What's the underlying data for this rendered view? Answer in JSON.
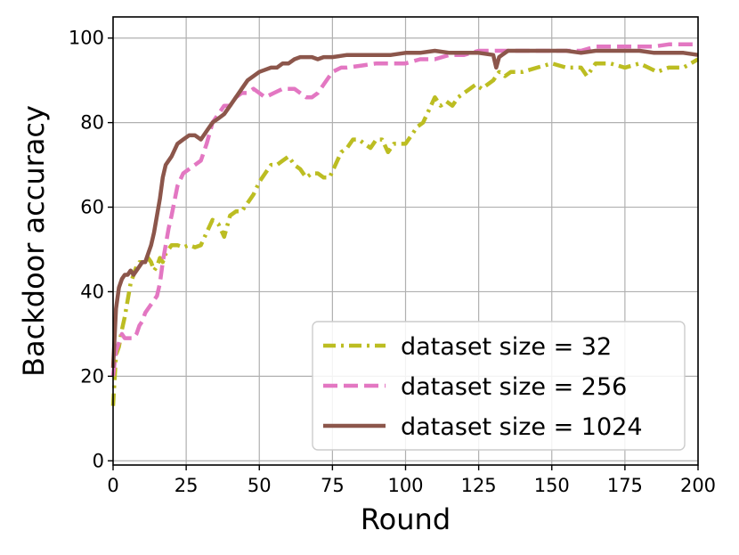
{
  "chart_data": {
    "type": "line",
    "xlabel": "Round",
    "ylabel": "Backdoor accuracy",
    "xlim": [
      0,
      200
    ],
    "ylim": [
      -1,
      105
    ],
    "xticks": [
      "0",
      "25",
      "50",
      "75",
      "100",
      "125",
      "150",
      "175",
      "200"
    ],
    "yticks": [
      "0",
      "20",
      "40",
      "60",
      "80",
      "100"
    ],
    "grid": true,
    "legend_position": "lower-right",
    "series": [
      {
        "name": "dataset size = 32",
        "color": "#bcbd22",
        "dash": "dash-dot",
        "x": [
          0,
          1,
          2,
          3,
          4,
          5,
          6,
          7,
          8,
          9,
          10,
          11,
          12,
          13,
          14,
          15,
          16,
          17,
          18,
          19,
          20,
          22,
          24,
          26,
          28,
          30,
          32,
          34,
          36,
          38,
          40,
          42,
          44,
          46,
          48,
          50,
          52,
          54,
          56,
          58,
          60,
          62,
          64,
          66,
          68,
          70,
          72,
          74,
          76,
          78,
          80,
          82,
          84,
          86,
          88,
          90,
          92,
          94,
          96,
          98,
          100,
          102,
          104,
          106,
          108,
          110,
          112,
          114,
          116,
          118,
          120,
          122,
          124,
          126,
          128,
          130,
          132,
          134,
          136,
          138,
          140,
          145,
          150,
          155,
          160,
          162,
          165,
          170,
          175,
          180,
          183,
          186,
          190,
          195,
          200
        ],
        "y": [
          13,
          25,
          27,
          31,
          34,
          38,
          42,
          44,
          46,
          47,
          47,
          47,
          48,
          47,
          45,
          46,
          48,
          47,
          49,
          50,
          51,
          51,
          50.5,
          51,
          50.5,
          51,
          54,
          57,
          56,
          53,
          58,
          59,
          59,
          61,
          63,
          66,
          68,
          70,
          70,
          71,
          72,
          70,
          69,
          67,
          68,
          68,
          67,
          67,
          70,
          73,
          74,
          76,
          76,
          75,
          74,
          76,
          76,
          73,
          75,
          75,
          75,
          77,
          79,
          80,
          83,
          86,
          84,
          85,
          84,
          86,
          87,
          88,
          89,
          88,
          89,
          90,
          92,
          91,
          92,
          92,
          92,
          93,
          94,
          93,
          93,
          91,
          94,
          94,
          93,
          94,
          93,
          92,
          93,
          93,
          95
        ]
      },
      {
        "name": "dataset size = 256",
        "color": "#e377c2",
        "dash": "dashed",
        "x": [
          0,
          1,
          2,
          3,
          4,
          5,
          6,
          7,
          8,
          9,
          10,
          11,
          12,
          13,
          14,
          15,
          16,
          17,
          18,
          19,
          20,
          22,
          24,
          26,
          28,
          30,
          32,
          34,
          36,
          38,
          40,
          42,
          44,
          46,
          48,
          50,
          52,
          55,
          58,
          60,
          62,
          64,
          66,
          68,
          70,
          72,
          75,
          78,
          80,
          85,
          90,
          95,
          100,
          105,
          110,
          115,
          120,
          125,
          130,
          135,
          140,
          145,
          150,
          155,
          160,
          165,
          170,
          175,
          180,
          185,
          190,
          195,
          200
        ],
        "y": [
          20,
          26,
          28,
          30,
          29,
          29,
          29,
          29,
          30,
          32,
          33,
          35,
          36,
          37,
          38,
          39,
          42,
          47,
          51,
          55,
          58,
          65,
          68,
          69,
          70,
          71,
          75,
          80,
          82,
          84,
          84,
          86,
          87,
          87,
          88,
          87,
          86,
          87,
          88,
          88,
          88,
          87,
          86,
          86,
          87,
          89,
          92,
          93,
          93,
          93.5,
          94,
          94,
          94,
          95,
          95,
          96,
          96,
          97,
          97,
          97,
          97,
          97,
          97,
          97,
          97,
          98,
          98,
          98,
          98,
          98,
          98.5,
          98.5,
          98.5
        ]
      },
      {
        "name": "dataset size = 1024",
        "color": "#8c564b",
        "dash": "solid",
        "x": [
          0,
          1,
          2,
          3,
          4,
          5,
          6,
          7,
          8,
          9,
          10,
          11,
          12,
          13,
          14,
          15,
          16,
          17,
          18,
          19,
          20,
          22,
          24,
          26,
          28,
          30,
          32,
          34,
          36,
          38,
          40,
          42,
          44,
          46,
          48,
          50,
          52,
          54,
          56,
          58,
          60,
          62,
          64,
          66,
          68,
          70,
          72,
          75,
          80,
          85,
          90,
          95,
          100,
          105,
          110,
          115,
          120,
          125,
          130,
          131,
          132,
          133,
          135,
          140,
          145,
          150,
          155,
          160,
          165,
          170,
          175,
          180,
          185,
          190,
          195,
          200
        ],
        "y": [
          22,
          36,
          41,
          43,
          44,
          44,
          45,
          44,
          45,
          46,
          47,
          47,
          49,
          51,
          54,
          58,
          62,
          67,
          70,
          71,
          72,
          75,
          76,
          77,
          77,
          76,
          78,
          80,
          81,
          82,
          84,
          86,
          88,
          90,
          91,
          92,
          92.5,
          93,
          93,
          94,
          94,
          95,
          95.5,
          95.5,
          95.5,
          95,
          95.5,
          95.5,
          96,
          96,
          96,
          96,
          96.5,
          96.5,
          97,
          96.5,
          96.5,
          96.5,
          96,
          93,
          95.5,
          96,
          97,
          97,
          97,
          97,
          97,
          96.5,
          97,
          97,
          97,
          97,
          96.5,
          96.5,
          96.5,
          96
        ]
      }
    ]
  }
}
